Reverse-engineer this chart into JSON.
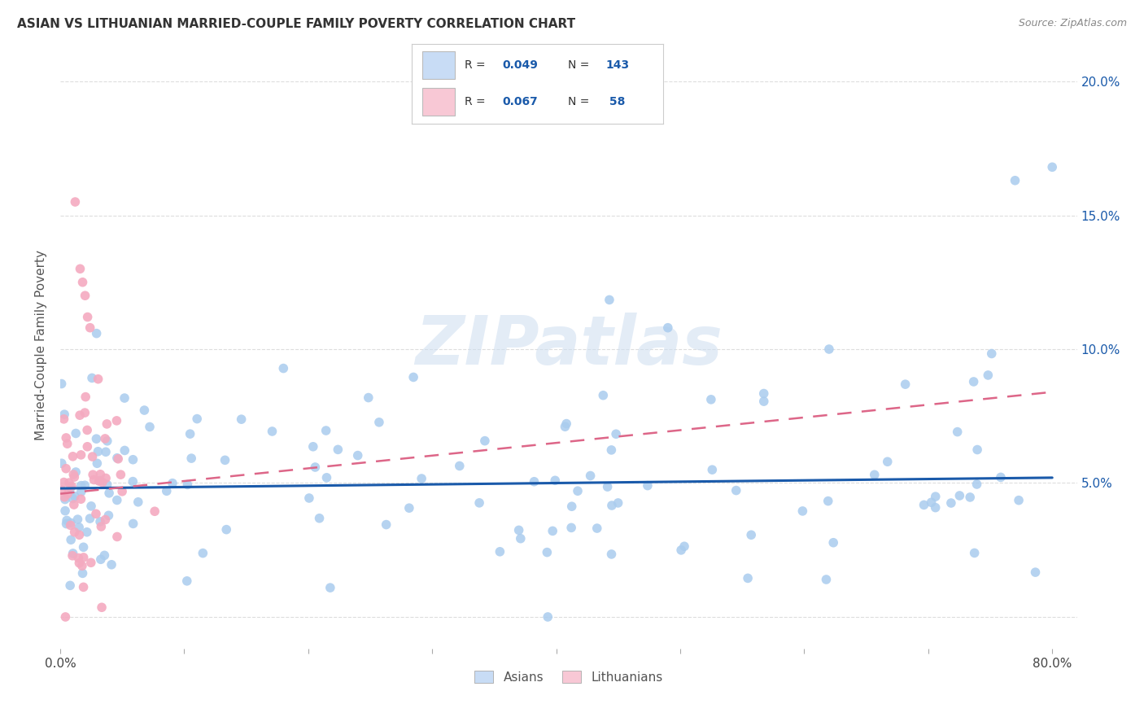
{
  "title": "ASIAN VS LITHUANIAN MARRIED-COUPLE FAMILY POVERTY CORRELATION CHART",
  "source": "Source: ZipAtlas.com",
  "ylabel": "Married-Couple Family Poverty",
  "xlim": [
    0.0,
    0.82
  ],
  "ylim": [
    -0.012,
    0.215
  ],
  "asian_R": 0.049,
  "asian_N": 143,
  "lith_R": 0.067,
  "lith_N": 58,
  "asian_color": "#aaccee",
  "lith_color": "#f4aac0",
  "asian_line_color": "#1a5aaa",
  "lith_line_color": "#dd6688",
  "watermark_text": "ZIPatlas",
  "watermark_color": "#ccddf0",
  "legend_box_color_asian": "#c8dcf5",
  "legend_box_color_lith": "#f8c8d5",
  "grid_color": "#dddddd",
  "background_color": "#ffffff",
  "title_color": "#333333",
  "label_color": "#555555",
  "tick_label_color": "#1a5aaa",
  "asian_line_start_y": 0.048,
  "asian_line_end_y": 0.052,
  "lith_line_start_y": 0.046,
  "lith_line_end_y": 0.084
}
